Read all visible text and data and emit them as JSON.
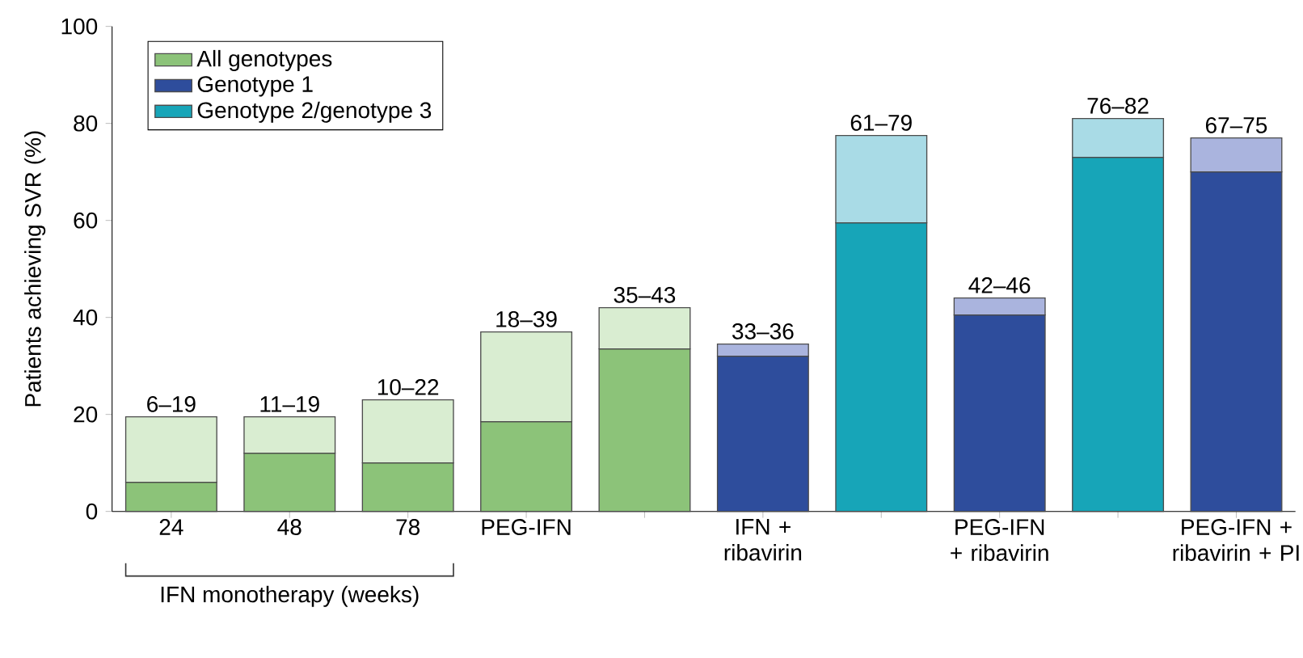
{
  "chart_data": {
    "type": "bar",
    "stacked": true,
    "ylabel": "Patients achieving SVR (%)",
    "ylim": [
      0,
      100
    ],
    "yticks": [
      0,
      20,
      40,
      60,
      80,
      100
    ],
    "legend": "top left",
    "categories": [
      "24",
      "48",
      "78",
      "PEG-IFN",
      null,
      "IFN + ribavirin",
      null,
      "PEG-IFN + ribavirin",
      null,
      "PEG-IFN + ribavirin + PI"
    ],
    "series": [
      {
        "name": "All genotypes",
        "color": "#8cc379",
        "values": [
          6,
          12,
          10,
          18.5,
          33.5,
          null,
          null,
          null,
          null,
          null
        ]
      },
      {
        "color": "#d9edd1",
        "values": [
          13.5,
          7.5,
          13,
          18.5,
          8.5,
          null,
          null,
          null,
          null,
          null
        ],
        "value_labels": [
          "6–19",
          "11–19",
          "10–22",
          "18–39",
          "35–43",
          null,
          null,
          null,
          null,
          null
        ]
      },
      {
        "name": "Genotype 1",
        "color": "#2e4d9c",
        "values": [
          null,
          null,
          null,
          null,
          null,
          32,
          null,
          40.5,
          null,
          70
        ]
      },
      {
        "color": "#aab4de",
        "values": [
          null,
          null,
          null,
          null,
          null,
          2.5,
          null,
          3.5,
          null,
          7
        ],
        "value_labels": [
          null,
          null,
          null,
          null,
          null,
          "33–36",
          null,
          "42–46",
          null,
          "67–75"
        ]
      },
      {
        "name": "Genotype 2/genotype 3",
        "color": "#17a5b8",
        "values": [
          null,
          null,
          null,
          null,
          null,
          null,
          59.5,
          null,
          73,
          null
        ]
      },
      {
        "color": "#a9dbe6",
        "values": [
          null,
          null,
          null,
          null,
          null,
          null,
          18,
          null,
          8,
          null
        ],
        "value_labels": [
          null,
          null,
          null,
          null,
          null,
          null,
          "61–79",
          null,
          "76–82",
          null
        ]
      }
    ],
    "annotations": [
      "IFN monotherapy (weeks)"
    ]
  }
}
